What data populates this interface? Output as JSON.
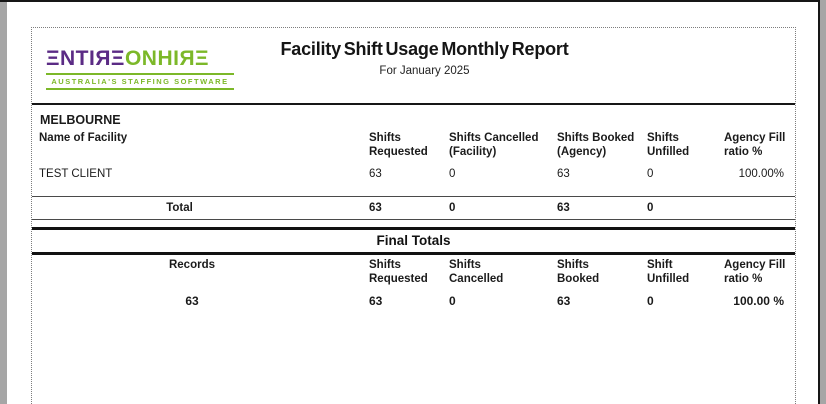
{
  "window": {
    "frame_color": "#a6a6a6",
    "edge_color": "#161616"
  },
  "header": {
    "logo": {
      "wordmark_left": "ΞNTIЯΞ",
      "wordmark_right": "ONHIЯΞ",
      "tagline": "AUSTRALIA'S STAFFING SOFTWARE",
      "purple": "#5b2b85",
      "green": "#7cb829"
    },
    "title": "Facility Shift Usage Monthly Report",
    "subtitle": "For January 2025"
  },
  "region_section": {
    "region": "MELBOURNE",
    "name_column": "Name of Facility",
    "columns": [
      "Shifts\nRequested",
      "Shifts Cancelled\n(Facility)",
      "Shifts Booked\n(Agency)",
      "Shifts\nUnfilled",
      "Agency Fill\nratio %"
    ],
    "rows": [
      {
        "name": "TEST CLIENT",
        "values": [
          "63",
          "0",
          "63",
          "0",
          "100.00%"
        ]
      }
    ],
    "total": {
      "label": "Total",
      "values": [
        "63",
        "0",
        "63",
        "0"
      ]
    }
  },
  "final_totals": {
    "title": "Final Totals",
    "records_label": "Records",
    "records_value": "63",
    "columns": [
      "Shifts\nRequested",
      "Shifts\nCancelled",
      "Shifts\nBooked",
      "Shift\nUnfilled",
      "Agency Fill\nratio %"
    ],
    "values": [
      "63",
      "0",
      "63",
      "0",
      "100.00 %"
    ]
  }
}
